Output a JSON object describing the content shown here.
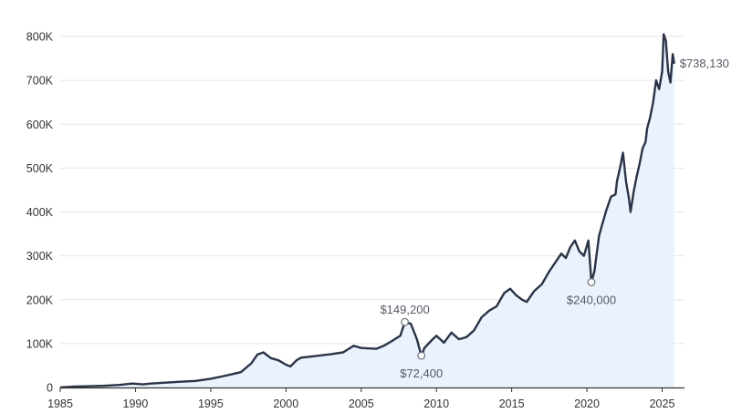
{
  "chart_data": {
    "type": "area",
    "title": "",
    "xlabel": "",
    "ylabel": "",
    "xlim": [
      1985,
      2026
    ],
    "ylim": [
      0,
      800000
    ],
    "grid": true,
    "colors": {
      "line": "#2b3347",
      "fill": "#eaf2fd",
      "grid": "#e6e6e6",
      "axis": "#333333",
      "marker": "#6b6f7a"
    },
    "x_ticks": [
      {
        "value": 1985,
        "label": "1985"
      },
      {
        "value": 1990,
        "label": "1990"
      },
      {
        "value": 1995,
        "label": "1995"
      },
      {
        "value": 2000,
        "label": "2000"
      },
      {
        "value": 2005,
        "label": "2005"
      },
      {
        "value": 2010,
        "label": "2010"
      },
      {
        "value": 2015,
        "label": "2015"
      },
      {
        "value": 2020,
        "label": "2020"
      },
      {
        "value": 2025,
        "label": "2025"
      }
    ],
    "y_ticks": [
      {
        "value": 0,
        "label": "0"
      },
      {
        "value": 100000,
        "label": "100K"
      },
      {
        "value": 200000,
        "label": "200K"
      },
      {
        "value": 300000,
        "label": "300K"
      },
      {
        "value": 400000,
        "label": "400K"
      },
      {
        "value": 500000,
        "label": "500K"
      },
      {
        "value": 600000,
        "label": "600K"
      },
      {
        "value": 700000,
        "label": "700K"
      },
      {
        "value": 800000,
        "label": "800K"
      }
    ],
    "series": [
      {
        "x": [
          1985.0,
          1986.0,
          1987.0,
          1988.0,
          1989.0,
          1989.8,
          1990.5,
          1991.0,
          1992.0,
          1993.0,
          1994.0,
          1995.0,
          1996.0,
          1997.0,
          1997.7,
          1998.1,
          1998.5,
          1999.0,
          1999.5,
          2000.0,
          2000.3,
          2000.7,
          2001.0,
          2002.0,
          2003.0,
          2003.8,
          2004.5,
          2005.0,
          2006.0,
          2006.5,
          2007.0,
          2007.6,
          2007.9,
          2008.3,
          2008.7,
          2009.0,
          2009.2,
          2009.7,
          2010.0,
          2010.5,
          2011.0,
          2011.5,
          2012.0,
          2012.5,
          2013.0,
          2013.5,
          2014.0,
          2014.5,
          2014.9,
          2015.3,
          2015.7,
          2016.0,
          2016.5,
          2017.0,
          2017.5,
          2018.0,
          2018.3,
          2018.6,
          2018.9,
          2019.2,
          2019.5,
          2019.8,
          2020.1,
          2020.3,
          2020.5,
          2020.8,
          2021.0,
          2021.3,
          2021.6,
          2021.9,
          2022.0,
          2022.2,
          2022.4,
          2022.6,
          2022.8,
          2022.9,
          2023.1,
          2023.3,
          2023.5,
          2023.7,
          2023.9,
          2024.0,
          2024.2,
          2024.4,
          2024.6,
          2024.8,
          2025.0,
          2025.1,
          2025.25,
          2025.4,
          2025.55,
          2025.7,
          2025.8
        ],
        "values": [
          0,
          2000,
          3000,
          4000,
          6000,
          9000,
          7000,
          9000,
          11000,
          13000,
          15000,
          20000,
          27000,
          35000,
          55000,
          75000,
          80000,
          67000,
          62000,
          52000,
          48000,
          62000,
          68000,
          72000,
          76000,
          80000,
          95000,
          90000,
          88000,
          95000,
          105000,
          118000,
          149200,
          145000,
          110000,
          72400,
          90000,
          108000,
          118000,
          102000,
          125000,
          110000,
          115000,
          130000,
          160000,
          175000,
          185000,
          215000,
          225000,
          210000,
          200000,
          195000,
          220000,
          235000,
          265000,
          290000,
          305000,
          295000,
          320000,
          335000,
          310000,
          300000,
          335000,
          240000,
          265000,
          345000,
          370000,
          405000,
          435000,
          440000,
          470000,
          500000,
          535000,
          470000,
          430000,
          400000,
          445000,
          480000,
          510000,
          545000,
          560000,
          590000,
          615000,
          650000,
          700000,
          680000,
          720000,
          805000,
          790000,
          720000,
          695000,
          760000,
          738130
        ]
      }
    ],
    "annotations": [
      {
        "x": 2007.9,
        "y": 149200,
        "label": "$149,200",
        "position": "above"
      },
      {
        "x": 2009.0,
        "y": 72400,
        "label": "$72,400",
        "position": "below"
      },
      {
        "x": 2020.3,
        "y": 240000,
        "label": "$240,000",
        "position": "below"
      }
    ],
    "end_label": {
      "x": 2025.8,
      "y": 738130,
      "label": "$738,130"
    }
  }
}
